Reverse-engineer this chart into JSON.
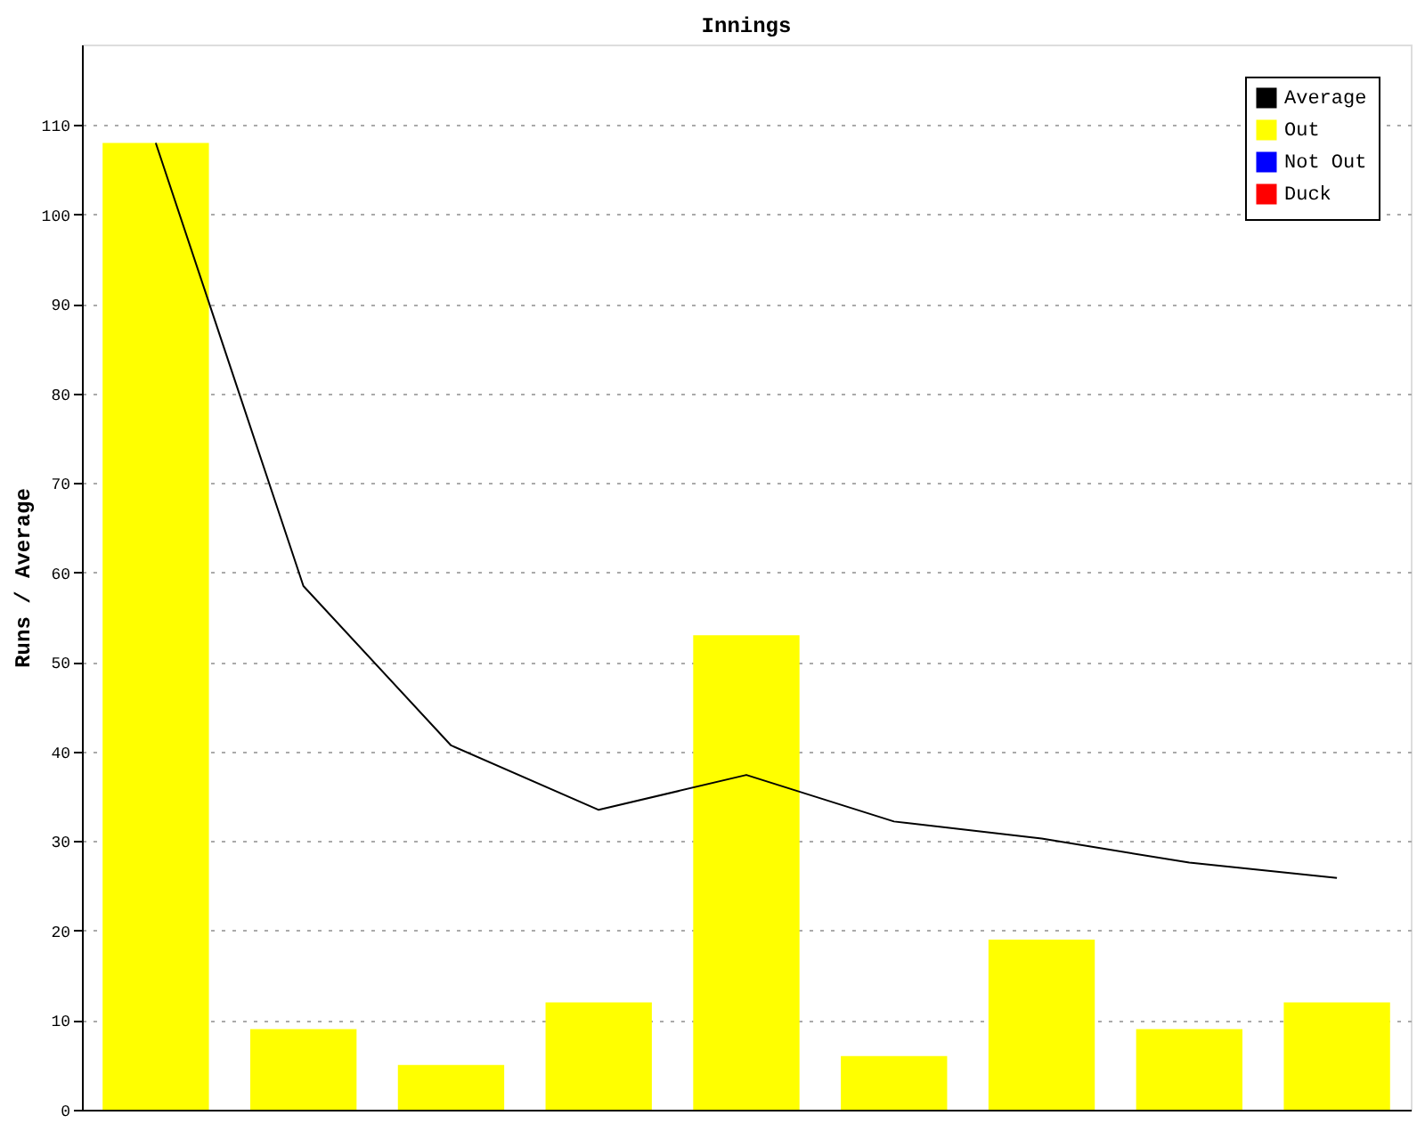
{
  "chart_data": {
    "type": "bar",
    "title": "Innings",
    "ylabel": "Runs / Average",
    "categories": [
      null,
      null,
      null,
      null,
      null,
      null,
      null,
      null,
      null
    ],
    "series": [
      {
        "name": "Average",
        "type": "line",
        "color": "#000000",
        "values": [
          108,
          58.5,
          40.7,
          33.5,
          37.4,
          32.2,
          30.3,
          27.6,
          25.9
        ]
      },
      {
        "name": "Out",
        "color": "#ffff00",
        "values": [
          108,
          9,
          5,
          12,
          53,
          6,
          19,
          9,
          12
        ]
      },
      {
        "name": "Not Out",
        "color": "#0000ff",
        "values": [
          null,
          null,
          null,
          null,
          null,
          null,
          null,
          null,
          null
        ]
      },
      {
        "name": "Duck",
        "color": "#ff0000",
        "values": [
          null,
          null,
          null,
          null,
          null,
          null,
          null,
          null,
          null
        ]
      }
    ],
    "ylim": [
      0,
      119
    ],
    "yticks": [
      0,
      10,
      20,
      30,
      40,
      50,
      60,
      70,
      80,
      90,
      100,
      110
    ],
    "grid": "y",
    "legend": "top right",
    "tick_labels": "y"
  }
}
